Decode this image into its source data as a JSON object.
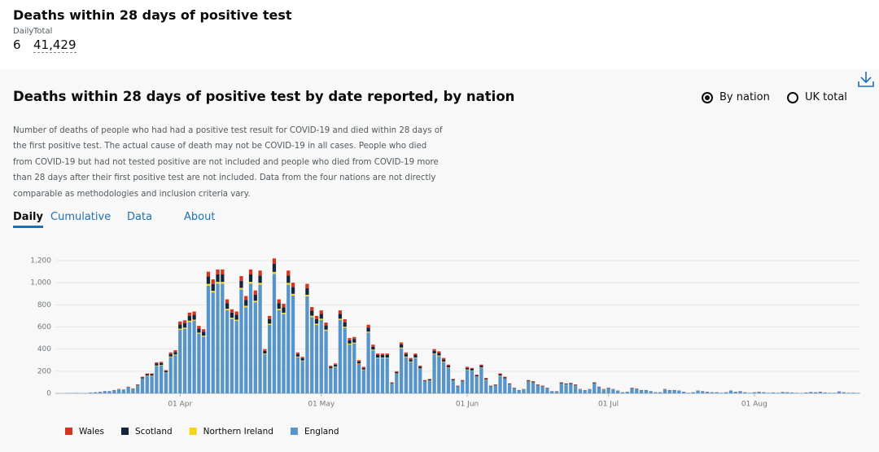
{
  "header": {
    "title": "Deaths within 28 days of positive test",
    "daily_label": "Daily",
    "daily_value": "6",
    "total_label": "Total",
    "total_value": "41,429"
  },
  "card": {
    "title": "Deaths within 28 days of positive test by date reported, by nation",
    "options": [
      "By nation",
      "UK total"
    ],
    "description": "Number of deaths of people who had had a positive test result for COVID-19 and died within 28 days of the first positive test. The actual cause of death may not be COVID-19 in all cases. People who died from COVID-19 but had not tested positive are not included and people who died from COVID-19 more than 28 days after their first positive test are not included. Data from the four nations are not directly comparable as methodologies and inclusion criteria vary.",
    "tabs": [
      "Daily",
      "Cumulative",
      "Data",
      "About"
    ]
  },
  "chart_data": {
    "type": "stacked-bar",
    "ylim": [
      0,
      1200
    ],
    "yticks": [
      0,
      200,
      400,
      600,
      800,
      {
        "value": 1000,
        "label": "1,000"
      },
      {
        "value": 1200,
        "label": "1,200"
      }
    ],
    "grid": true,
    "categories": [
      null,
      null,
      null,
      null,
      null,
      null,
      null,
      null,
      null,
      null,
      null,
      null,
      null,
      null,
      null,
      null,
      null,
      null,
      null,
      null,
      null,
      null,
      null,
      null,
      null,
      null,
      "01 Apr",
      null,
      null,
      null,
      null,
      null,
      null,
      null,
      null,
      null,
      null,
      null,
      null,
      null,
      null,
      null,
      null,
      null,
      null,
      null,
      null,
      null,
      null,
      null,
      null,
      null,
      null,
      null,
      null,
      null,
      "01 May",
      null,
      null,
      null,
      null,
      null,
      null,
      null,
      null,
      null,
      null,
      null,
      null,
      null,
      null,
      null,
      null,
      null,
      null,
      null,
      null,
      null,
      null,
      null,
      null,
      null,
      null,
      null,
      null,
      null,
      null,
      "01 Jun",
      null,
      null,
      null,
      null,
      null,
      null,
      null,
      null,
      null,
      null,
      null,
      null,
      null,
      null,
      null,
      null,
      null,
      null,
      null,
      null,
      null,
      null,
      null,
      null,
      null,
      null,
      null,
      null,
      null,
      "01 Jul",
      null,
      null,
      null,
      null,
      null,
      null,
      null,
      null,
      null,
      null,
      null,
      null,
      null,
      null,
      null,
      null,
      null,
      null,
      null,
      null,
      null,
      null,
      null,
      null,
      null,
      null,
      null,
      null,
      null,
      null,
      "01 Aug",
      null,
      null,
      null,
      null,
      null,
      null,
      null,
      null,
      null,
      null,
      null,
      null,
      null,
      null,
      null,
      null,
      null,
      null,
      null,
      null,
      null,
      null
    ],
    "series": [
      {
        "name": "Wales",
        "color": "#d4351c",
        "values": [
          0,
          0,
          0,
          0,
          0,
          0,
          0,
          0,
          0,
          1,
          1,
          1,
          1,
          2,
          1,
          2,
          2,
          3,
          6,
          7,
          7,
          11,
          11,
          8,
          15,
          16,
          26,
          26,
          29,
          30,
          24,
          23,
          44,
          41,
          45,
          45,
          34,
          30,
          30,
          42,
          35,
          45,
          37,
          44,
          16,
          28,
          49,
          34,
          32,
          44,
          40,
          15,
          13,
          40,
          31,
          28,
          30,
          26,
          10,
          11,
          30,
          27,
          20,
          20,
          12,
          10,
          25,
          18,
          14,
          14,
          14,
          4,
          8,
          18,
          15,
          13,
          14,
          10,
          5,
          5,
          16,
          15,
          13,
          10,
          5,
          3,
          5,
          10,
          9,
          7,
          10,
          6,
          3,
          3,
          7,
          6,
          4,
          2,
          1,
          2,
          5,
          4,
          3,
          3,
          2,
          1,
          1,
          4,
          4,
          4,
          3,
          2,
          1,
          2,
          4,
          2,
          2,
          2,
          2,
          1,
          0,
          1,
          2,
          2,
          1,
          1,
          1,
          0,
          0,
          2,
          1,
          1,
          1,
          1,
          0,
          0,
          1,
          1,
          1,
          0,
          0,
          0,
          0,
          1,
          1,
          1,
          0,
          0,
          0,
          1,
          0,
          0,
          0,
          0,
          0,
          0,
          0,
          0,
          0,
          0,
          0,
          0,
          1,
          0,
          0,
          0,
          1,
          0,
          0,
          0,
          0
        ]
      },
      {
        "name": "Scotland",
        "color": "#12263f",
        "values": [
          0,
          0,
          0,
          0,
          0,
          0,
          0,
          0,
          1,
          1,
          1,
          1,
          2,
          2,
          2,
          4,
          3,
          5,
          9,
          11,
          11,
          17,
          17,
          13,
          22,
          23,
          39,
          40,
          44,
          44,
          37,
          35,
          66,
          62,
          67,
          67,
          51,
          46,
          44,
          64,
          53,
          67,
          56,
          67,
          24,
          42,
          73,
          51,
          49,
          67,
          60,
          22,
          20,
          59,
          47,
          42,
          45,
          38,
          15,
          16,
          45,
          40,
          30,
          31,
          18,
          14,
          37,
          26,
          22,
          22,
          22,
          6,
          12,
          28,
          22,
          19,
          22,
          15,
          7,
          8,
          24,
          23,
          19,
          16,
          8,
          4,
          7,
          14,
          14,
          10,
          16,
          8,
          4,
          5,
          11,
          9,
          5,
          3,
          2,
          2,
          7,
          7,
          5,
          4,
          3,
          1,
          1,
          6,
          5,
          6,
          5,
          2,
          2,
          2,
          6,
          4,
          2,
          3,
          2,
          2,
          1,
          1,
          3,
          3,
          2,
          2,
          1,
          1,
          1,
          2,
          2,
          2,
          2,
          1,
          0,
          1,
          2,
          1,
          1,
          1,
          1,
          0,
          1,
          2,
          1,
          1,
          1,
          0,
          1,
          1,
          1,
          0,
          0,
          0,
          1,
          1,
          0,
          0,
          0,
          0,
          1,
          1,
          1,
          0,
          0,
          0,
          1,
          1,
          0,
          0,
          0
        ]
      },
      {
        "name": "Northern Ireland",
        "color": "#f5d31e",
        "values": [
          0,
          0,
          0,
          0,
          0,
          0,
          0,
          0,
          0,
          0,
          0,
          0,
          0,
          1,
          1,
          1,
          1,
          1,
          2,
          3,
          3,
          4,
          4,
          3,
          6,
          6,
          10,
          10,
          11,
          11,
          9,
          9,
          17,
          15,
          17,
          17,
          13,
          11,
          11,
          16,
          13,
          17,
          14,
          17,
          6,
          11,
          18,
          13,
          12,
          17,
          15,
          6,
          5,
          15,
          12,
          11,
          11,
          10,
          4,
          4,
          11,
          10,
          8,
          8,
          5,
          4,
          9,
          7,
          5,
          5,
          5,
          2,
          3,
          7,
          6,
          5,
          5,
          4,
          2,
          2,
          6,
          6,
          5,
          4,
          2,
          1,
          2,
          4,
          3,
          3,
          4,
          2,
          1,
          1,
          3,
          2,
          1,
          1,
          0,
          1,
          2,
          2,
          1,
          1,
          1,
          0,
          0,
          2,
          1,
          1,
          1,
          1,
          0,
          1,
          2,
          1,
          1,
          1,
          1,
          0,
          0,
          0,
          1,
          1,
          0,
          0,
          0,
          0,
          0,
          1,
          0,
          0,
          0,
          0,
          0,
          0,
          0,
          0,
          0,
          0,
          0,
          0,
          0,
          0,
          0,
          0,
          0,
          0,
          0,
          0,
          0,
          0,
          0,
          0,
          0,
          0,
          0,
          0,
          0,
          0,
          0,
          0,
          0,
          0,
          0,
          0,
          0,
          0,
          0,
          0,
          0
        ]
      },
      {
        "name": "England",
        "color": "#5694ca",
        "values": [
          1,
          0,
          2,
          3,
          4,
          1,
          2,
          8,
          9,
          12,
          18,
          18,
          27,
          35,
          31,
          53,
          39,
          71,
          133,
          159,
          159,
          248,
          253,
          186,
          327,
          345,
          575,
          584,
          646,
          655,
          540,
          513,
          973,
          912,
          991,
          991,
          752,
          673,
          655,
          938,
          779,
          991,
          823,
          982,
          354,
          619,
          1080,
          752,
          717,
          982,
          885,
          327,
          292,
          876,
          690,
          619,
          664,
          566,
          221,
          239,
          664,
          593,
          442,
          451,
          265,
          212,
          549,
          389,
          319,
          319,
          319,
          88,
          177,
          407,
          327,
          283,
          319,
          221,
          106,
          115,
          354,
          336,
          283,
          230,
          115,
          62,
          106,
          212,
          204,
          150,
          230,
          124,
          62,
          71,
          159,
          133,
          80,
          44,
          27,
          35,
          106,
          97,
          71,
          62,
          44,
          18,
          18,
          88,
          80,
          84,
          71,
          35,
          27,
          35,
          88,
          53,
          35,
          44,
          35,
          22,
          9,
          13,
          44,
          39,
          27,
          27,
          18,
          9,
          9,
          35,
          27,
          27,
          22,
          13,
          5,
          9,
          22,
          18,
          13,
          9,
          9,
          5,
          9,
          22,
          13,
          18,
          9,
          5,
          9,
          13,
          9,
          5,
          8,
          5,
          11,
          9,
          8,
          5,
          3,
          8,
          11,
          9,
          13,
          8,
          5,
          5,
          16,
          9,
          5,
          6,
          4
        ]
      }
    ]
  }
}
